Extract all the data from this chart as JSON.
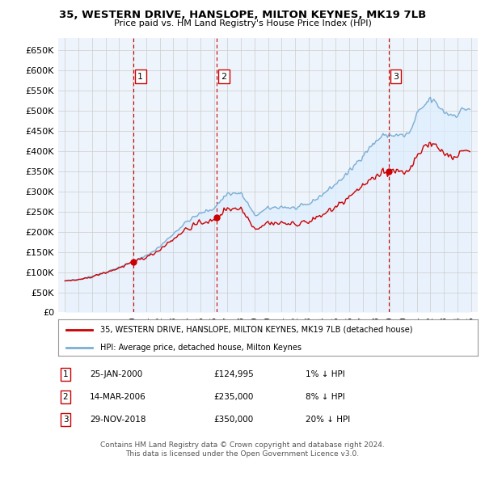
{
  "title": "35, WESTERN DRIVE, HANSLOPE, MILTON KEYNES, MK19 7LB",
  "subtitle": "Price paid vs. HM Land Registry's House Price Index (HPI)",
  "ylim": [
    0,
    680000
  ],
  "yticks": [
    0,
    50000,
    100000,
    150000,
    200000,
    250000,
    300000,
    350000,
    400000,
    450000,
    500000,
    550000,
    600000,
    650000
  ],
  "xlim_start": 1994.5,
  "xlim_end": 2025.5,
  "sale_dates": [
    2000.07,
    2006.21,
    2018.92
  ],
  "sale_prices": [
    124995,
    235000,
    350000
  ],
  "sale_labels": [
    "1",
    "2",
    "3"
  ],
  "legend_line1": "35, WESTERN DRIVE, HANSLOPE, MILTON KEYNES, MK19 7LB (detached house)",
  "legend_line2": "HPI: Average price, detached house, Milton Keynes",
  "table_entries": [
    {
      "num": "1",
      "date": "25-JAN-2000",
      "price": "£124,995",
      "hpi": "1% ↓ HPI"
    },
    {
      "num": "2",
      "date": "14-MAR-2006",
      "price": "£235,000",
      "hpi": "8% ↓ HPI"
    },
    {
      "num": "3",
      "date": "29-NOV-2018",
      "price": "£350,000",
      "hpi": "20% ↓ HPI"
    }
  ],
  "footer1": "Contains HM Land Registry data © Crown copyright and database right 2024.",
  "footer2": "This data is licensed under the Open Government Licence v3.0.",
  "hpi_color": "#7bafd4",
  "hpi_fill_color": "#ddeeff",
  "sale_line_color": "#cc0000",
  "sale_dot_color": "#cc0000",
  "vline_color": "#cc0000",
  "background_color": "#ffffff",
  "grid_color": "#cccccc"
}
